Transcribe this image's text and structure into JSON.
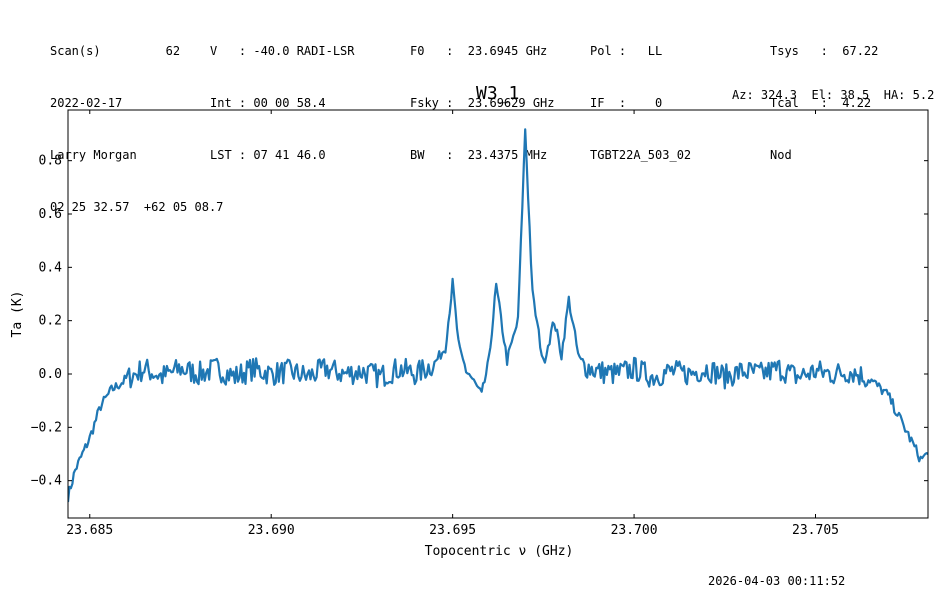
{
  "header": {
    "col1": [
      "Scan(s)         62",
      "2022-02-17",
      "Larry Morgan",
      "02 25 32.57  +62 05 08.7"
    ],
    "col2": [
      "V   : -40.0 RADI-LSR",
      "Int : 00 00 58.4",
      "LST : 07 41 46.0"
    ],
    "col3": [
      "F0   :  23.6945 GHz",
      "Fsky :  23.69629 GHz",
      "BW   :  23.4375 MHz"
    ],
    "col4": [
      "Pol :   LL",
      "IF  :    0",
      "TGBT22A_503_02"
    ],
    "col5": [
      "Tsys   :  67.22",
      "Tcal   :  4.22",
      "Nod"
    ],
    "azel": "Az: 324.3  El: 38.5  HA: 5.2"
  },
  "timestamp": "2026-04-03 00:11:52",
  "colors": {
    "line": "#1f77b4",
    "axes": "#000000"
  },
  "chart_data": {
    "type": "line",
    "title": "W3_1",
    "xlabel": "Topocentric ν (GHz)",
    "ylabel": "Ta (K)",
    "xlim": [
      23.6844,
      23.7081
    ],
    "ylim": [
      -0.54,
      0.99
    ],
    "xticks": [
      23.685,
      23.69,
      23.695,
      23.7,
      23.705
    ],
    "xtick_labels": [
      "23.685",
      "23.690",
      "23.695",
      "23.700",
      "23.705"
    ],
    "yticks": [
      -0.4,
      -0.2,
      0.0,
      0.2,
      0.4,
      0.6,
      0.8
    ],
    "ytick_labels": [
      "−0.4",
      "−0.2",
      "0.0",
      "0.2",
      "0.4",
      "0.6",
      "0.8"
    ],
    "grid": false,
    "series": [
      {
        "x": [
          23.6844,
          23.6846,
          23.6848,
          23.685,
          23.6853,
          23.6856,
          23.686,
          23.6865,
          23.687,
          23.6875,
          23.688,
          23.6885,
          23.689,
          23.6895,
          23.69,
          23.6905,
          23.691,
          23.6915,
          23.692,
          23.6925,
          23.693,
          23.6935,
          23.694,
          23.6945,
          23.6948,
          23.695,
          23.6952,
          23.6955,
          23.6958,
          23.696,
          23.6962,
          23.6965,
          23.6968,
          23.697,
          23.6972,
          23.6975,
          23.6978,
          23.698,
          23.6982,
          23.6985,
          23.699,
          23.6995,
          23.7,
          23.7005,
          23.701,
          23.7015,
          23.702,
          23.7025,
          23.703,
          23.7035,
          23.704,
          23.7045,
          23.705,
          23.7055,
          23.706,
          23.7065,
          23.707,
          23.7073,
          23.7076,
          23.7079,
          23.7081
        ],
        "y": [
          -0.46,
          -0.36,
          -0.3,
          -0.24,
          -0.12,
          -0.06,
          -0.02,
          0.02,
          -0.01,
          0.02,
          0.0,
          0.02,
          -0.01,
          0.02,
          0.0,
          0.01,
          -0.01,
          0.02,
          0.0,
          0.01,
          -0.01,
          0.02,
          0.0,
          0.04,
          0.1,
          0.34,
          0.06,
          -0.01,
          -0.08,
          0.05,
          0.33,
          0.05,
          0.2,
          0.92,
          0.3,
          0.04,
          0.2,
          0.07,
          0.28,
          0.04,
          0.01,
          0.0,
          0.02,
          -0.01,
          0.01,
          0.0,
          0.02,
          -0.01,
          0.01,
          0.0,
          0.02,
          -0.01,
          0.01,
          0.0,
          0.01,
          -0.02,
          -0.08,
          -0.16,
          -0.24,
          -0.32,
          -0.3
        ]
      }
    ]
  }
}
